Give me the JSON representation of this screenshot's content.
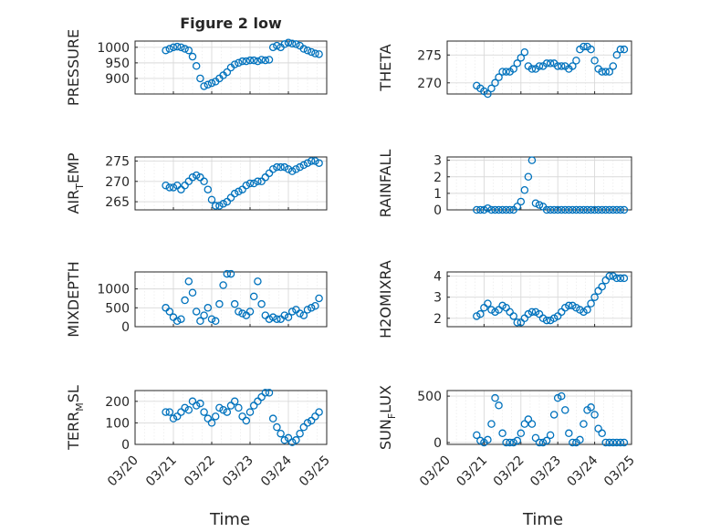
{
  "title": "Figure 2 low",
  "chart_data": [
    {
      "type": "scatter",
      "ylabel": "PRESSURE",
      "ylim": [
        850,
        1020
      ],
      "yticks": [
        "900",
        "950",
        "1000"
      ],
      "x": [
        20.8,
        20.9,
        21.0,
        21.1,
        21.2,
        21.3,
        21.4,
        21.5,
        21.6,
        21.7,
        21.8,
        21.9,
        22.0,
        22.1,
        22.2,
        22.3,
        22.4,
        22.5,
        22.6,
        22.7,
        22.8,
        22.9,
        23.0,
        23.1,
        23.2,
        23.3,
        23.4,
        23.5,
        23.6,
        23.7,
        23.8,
        23.9,
        24.0,
        24.1,
        24.2,
        24.3,
        24.4,
        24.5,
        24.6,
        24.7,
        24.8
      ],
      "y": [
        990,
        995,
        1000,
        1002,
        1000,
        995,
        990,
        970,
        940,
        900,
        875,
        880,
        885,
        890,
        900,
        910,
        920,
        935,
        945,
        950,
        955,
        955,
        958,
        958,
        955,
        960,
        958,
        960,
        1000,
        1005,
        1000,
        1010,
        1015,
        1012,
        1010,
        1005,
        995,
        990,
        985,
        980,
        978
      ]
    },
    {
      "type": "scatter",
      "ylabel": "THETA",
      "ylim": [
        268,
        277.5
      ],
      "yticks": [
        "270",
        "275"
      ],
      "x": [
        20.8,
        20.9,
        21.0,
        21.1,
        21.2,
        21.3,
        21.4,
        21.5,
        21.6,
        21.7,
        21.8,
        21.9,
        22.0,
        22.1,
        22.2,
        22.3,
        22.4,
        22.5,
        22.6,
        22.7,
        22.8,
        22.9,
        23.0,
        23.1,
        23.2,
        23.3,
        23.4,
        23.5,
        23.6,
        23.7,
        23.8,
        23.9,
        24.0,
        24.1,
        24.2,
        24.3,
        24.4,
        24.5,
        24.6,
        24.7,
        24.8
      ],
      "y": [
        269.5,
        269,
        268.5,
        268,
        269,
        270,
        271,
        272,
        272,
        272,
        272.5,
        273.5,
        274.5,
        275.5,
        273,
        272.5,
        272.5,
        273,
        273,
        273.5,
        273.5,
        273.5,
        273,
        273,
        273,
        272.5,
        273,
        274,
        276,
        276.5,
        276.5,
        276,
        274,
        272.5,
        272,
        272,
        272,
        273,
        275,
        276,
        276
      ]
    },
    {
      "type": "scatter",
      "ylabel": "AIR_TEMP",
      "ylim": [
        263,
        276
      ],
      "yticks": [
        "265",
        "270",
        "275"
      ],
      "x": [
        20.8,
        20.9,
        21.0,
        21.1,
        21.2,
        21.3,
        21.4,
        21.5,
        21.6,
        21.7,
        21.8,
        21.9,
        22.0,
        22.1,
        22.2,
        22.3,
        22.4,
        22.5,
        22.6,
        22.7,
        22.8,
        22.9,
        23.0,
        23.1,
        23.2,
        23.3,
        23.4,
        23.5,
        23.6,
        23.7,
        23.8,
        23.9,
        24.0,
        24.1,
        24.2,
        24.3,
        24.4,
        24.5,
        24.6,
        24.7,
        24.8
      ],
      "y": [
        269,
        268.5,
        268.5,
        269,
        268,
        269,
        270,
        271,
        271.5,
        271,
        270,
        268,
        265.5,
        264,
        264,
        264.5,
        265,
        266,
        267,
        267.5,
        268,
        269,
        269.5,
        269.5,
        270,
        270,
        271,
        272,
        273,
        273.5,
        273.5,
        273.5,
        273,
        272.5,
        273,
        273.5,
        274,
        274.5,
        275,
        275,
        274.5
      ]
    },
    {
      "type": "scatter",
      "ylabel": "RAINFALL",
      "ylim": [
        0,
        3.2
      ],
      "yticks": [
        "0",
        "1",
        "2",
        "3"
      ],
      "x": [
        20.8,
        20.9,
        21.0,
        21.1,
        21.2,
        21.3,
        21.4,
        21.5,
        21.6,
        21.7,
        21.8,
        21.9,
        22.0,
        22.1,
        22.2,
        22.3,
        22.4,
        22.5,
        22.6,
        22.7,
        22.8,
        22.9,
        23.0,
        23.1,
        23.2,
        23.3,
        23.4,
        23.5,
        23.6,
        23.7,
        23.8,
        23.9,
        24.0,
        24.1,
        24.2,
        24.3,
        24.4,
        24.5,
        24.6,
        24.7,
        24.8
      ],
      "y": [
        0,
        0,
        0,
        0.1,
        0,
        0,
        0,
        0,
        0,
        0,
        0,
        0.2,
        0.5,
        1.2,
        2.0,
        3.0,
        0.4,
        0.3,
        0.2,
        0,
        0,
        0,
        0,
        0,
        0,
        0,
        0,
        0,
        0,
        0,
        0,
        0,
        0,
        0,
        0,
        0,
        0,
        0,
        0,
        0,
        0
      ]
    },
    {
      "type": "scatter",
      "ylabel": "MIXDEPTH",
      "ylim": [
        0,
        1450
      ],
      "yticks": [
        "0",
        "500",
        "1000"
      ],
      "x": [
        20.8,
        20.9,
        21.0,
        21.1,
        21.2,
        21.3,
        21.4,
        21.5,
        21.6,
        21.7,
        21.8,
        21.9,
        22.0,
        22.1,
        22.2,
        22.3,
        22.4,
        22.5,
        22.6,
        22.7,
        22.8,
        22.9,
        23.0,
        23.1,
        23.2,
        23.3,
        23.4,
        23.5,
        23.6,
        23.7,
        23.8,
        23.9,
        24.0,
        24.1,
        24.2,
        24.3,
        24.4,
        24.5,
        24.6,
        24.7,
        24.8
      ],
      "y": [
        500,
        400,
        250,
        150,
        200,
        700,
        1200,
        900,
        400,
        150,
        300,
        500,
        200,
        150,
        600,
        1100,
        1400,
        1400,
        600,
        400,
        350,
        300,
        400,
        800,
        1200,
        600,
        300,
        200,
        250,
        200,
        200,
        300,
        250,
        400,
        450,
        350,
        300,
        450,
        500,
        550,
        750
      ]
    },
    {
      "type": "scatter",
      "ylabel": "H2OMIXRA",
      "ylim": [
        1.6,
        4.2
      ],
      "yticks": [
        "2",
        "3",
        "4"
      ],
      "x": [
        20.8,
        20.9,
        21.0,
        21.1,
        21.2,
        21.3,
        21.4,
        21.5,
        21.6,
        21.7,
        21.8,
        21.9,
        22.0,
        22.1,
        22.2,
        22.3,
        22.4,
        22.5,
        22.6,
        22.7,
        22.8,
        22.9,
        23.0,
        23.1,
        23.2,
        23.3,
        23.4,
        23.5,
        23.6,
        23.7,
        23.8,
        23.9,
        24.0,
        24.1,
        24.2,
        24.3,
        24.4,
        24.5,
        24.6,
        24.7,
        24.8
      ],
      "y": [
        2.1,
        2.2,
        2.5,
        2.7,
        2.4,
        2.3,
        2.4,
        2.6,
        2.5,
        2.3,
        2.1,
        1.8,
        1.8,
        2.0,
        2.2,
        2.3,
        2.3,
        2.2,
        2.0,
        1.9,
        1.9,
        2.0,
        2.1,
        2.3,
        2.5,
        2.6,
        2.6,
        2.5,
        2.4,
        2.3,
        2.4,
        2.7,
        3.0,
        3.3,
        3.5,
        3.8,
        4.0,
        4.0,
        3.9,
        3.9,
        3.9
      ]
    },
    {
      "type": "scatter",
      "ylabel": "TERR_MSL",
      "ylim": [
        0,
        250
      ],
      "yticks": [
        "0",
        "100",
        "200"
      ],
      "x": [
        20.8,
        20.9,
        21.0,
        21.1,
        21.2,
        21.3,
        21.4,
        21.5,
        21.6,
        21.7,
        21.8,
        21.9,
        22.0,
        22.1,
        22.2,
        22.3,
        22.4,
        22.5,
        22.6,
        22.7,
        22.8,
        22.9,
        23.0,
        23.1,
        23.2,
        23.3,
        23.4,
        23.5,
        23.6,
        23.7,
        23.8,
        23.9,
        24.0,
        24.1,
        24.2,
        24.3,
        24.4,
        24.5,
        24.6,
        24.7,
        24.8
      ],
      "y": [
        150,
        150,
        120,
        130,
        150,
        170,
        160,
        200,
        180,
        190,
        150,
        120,
        100,
        130,
        170,
        160,
        150,
        180,
        200,
        170,
        130,
        110,
        150,
        180,
        200,
        220,
        240,
        240,
        120,
        80,
        50,
        20,
        30,
        10,
        20,
        50,
        80,
        100,
        110,
        130,
        150
      ]
    },
    {
      "type": "scatter",
      "ylabel": "SUN_FLUX",
      "ylim": [
        -20,
        560
      ],
      "yticks": [
        "0",
        "500"
      ],
      "x": [
        20.8,
        20.9,
        21.0,
        21.1,
        21.2,
        21.3,
        21.4,
        21.5,
        21.6,
        21.7,
        21.8,
        21.9,
        22.0,
        22.1,
        22.2,
        22.3,
        22.4,
        22.5,
        22.6,
        22.7,
        22.8,
        22.9,
        23.0,
        23.1,
        23.2,
        23.3,
        23.4,
        23.5,
        23.6,
        23.7,
        23.8,
        23.9,
        24.0,
        24.1,
        24.2,
        24.3,
        24.4,
        24.5,
        24.6,
        24.7,
        24.8
      ],
      "y": [
        80,
        20,
        0,
        30,
        200,
        480,
        400,
        100,
        0,
        0,
        0,
        20,
        100,
        200,
        250,
        200,
        50,
        0,
        0,
        20,
        80,
        300,
        480,
        500,
        350,
        100,
        0,
        0,
        30,
        200,
        350,
        380,
        300,
        150,
        100,
        0,
        0,
        0,
        0,
        0,
        0
      ]
    }
  ],
  "xticks": [
    "03/20",
    "03/21",
    "03/22",
    "03/23",
    "03/24",
    "03/25"
  ],
  "xlabels": [
    "Time",
    "Time"
  ],
  "marker_color": "#0072BD"
}
